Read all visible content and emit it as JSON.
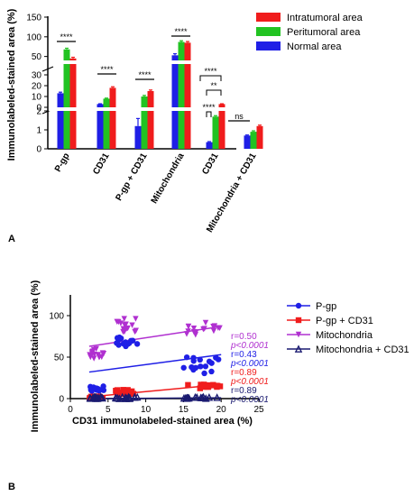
{
  "panel_labels": {
    "a": "A",
    "b": "B"
  },
  "chart_data": [
    {
      "type": "bar",
      "panel": "A",
      "ylabel": "Immunolabeled-stained area (%)",
      "y_scale": "broken",
      "y_segments": [
        {
          "range": [
            0,
            2
          ],
          "ticks": [
            "0",
            "1",
            "2"
          ]
        },
        {
          "range": [
            0,
            40
          ],
          "ticks": [
            "0",
            "10",
            "20",
            "30"
          ]
        },
        {
          "range": [
            40,
            150
          ],
          "ticks": [
            "50",
            "100",
            "150"
          ]
        }
      ],
      "categories": [
        "P-gp",
        "CD31",
        "P-gp + CD31",
        "Mitochondria",
        "CD31",
        "Mitochondria + CD31"
      ],
      "series": [
        {
          "name": "Normal area",
          "color": "#1f1fe6",
          "values": [
            13,
            3,
            1.2,
            53,
            0.35,
            0.7
          ]
        },
        {
          "name": "Peritumoral area",
          "color": "#22c322",
          "values": [
            68,
            8,
            10,
            87,
            1.7,
            0.9
          ]
        },
        {
          "name": "Intratumoral area",
          "color": "#f01c1c",
          "values": [
            45,
            18,
            15,
            85,
            3,
            1.2
          ]
        }
      ],
      "legend_order": [
        "Intratumoral area",
        "Peritumoral area",
        "Normal area"
      ],
      "legend_position": "top-right",
      "significance": [
        "****",
        "****",
        "****",
        "****",
        "****",
        "**",
        "****",
        "ns"
      ]
    },
    {
      "type": "scatter",
      "panel": "B",
      "xlabel": "CD31 immunolabeled-stained area (%)",
      "ylabel": "Immunolabeled-stained area (%)",
      "xlim": [
        0,
        25
      ],
      "ylim": [
        0,
        125
      ],
      "xticks": [
        "0",
        "5",
        "10",
        "15",
        "20",
        "25"
      ],
      "yticks": [
        "0",
        "50",
        "100"
      ],
      "legend_position": "top-right",
      "series": [
        {
          "name": "P-gp",
          "marker": "circle",
          "color": "#1f1fe6",
          "clusters": [
            {
              "x": [
                2.5,
                4.5
              ],
              "y": [
                9,
                15
              ]
            },
            {
              "x": [
                6,
                9
              ],
              "y": [
                62,
                74
              ]
            },
            {
              "x": [
                15,
                20
              ],
              "y": [
                30,
                50
              ]
            }
          ],
          "fit": {
            "x": [
              2.5,
              20
            ],
            "y": [
              32,
              53
            ]
          }
        },
        {
          "name": "P-gp + CD31",
          "marker": "square",
          "color": "#f01c1c",
          "clusters": [
            {
              "x": [
                2.5,
                4.5
              ],
              "y": [
                0,
                3
              ]
            },
            {
              "x": [
                6,
                9
              ],
              "y": [
                5,
                11
              ]
            },
            {
              "x": [
                15,
                20
              ],
              "y": [
                12,
                17
              ]
            }
          ],
          "fit": {
            "x": [
              2.5,
              20
            ],
            "y": [
              2,
              17
            ]
          }
        },
        {
          "name": "Mitochondria",
          "marker": "triangle-down",
          "color": "#b030d0",
          "clusters": [
            {
              "x": [
                2.5,
                4.5
              ],
              "y": [
                48,
                60
              ]
            },
            {
              "x": [
                6,
                9
              ],
              "y": [
                80,
                97
              ]
            },
            {
              "x": [
                15,
                20
              ],
              "y": [
                74,
                92
              ]
            }
          ],
          "fit": {
            "x": [
              2.5,
              20
            ],
            "y": [
              63,
              87
            ]
          }
        },
        {
          "name": "Mitochondria + CD31",
          "marker": "triangle-up",
          "color": "#1a1a70",
          "clusters": [
            {
              "x": [
                2.5,
                4.5
              ],
              "y": [
                0,
                2
              ]
            },
            {
              "x": [
                6,
                9
              ],
              "y": [
                0,
                2
              ]
            },
            {
              "x": [
                15,
                20
              ],
              "y": [
                0,
                2
              ]
            }
          ],
          "fit": {
            "x": [
              2.5,
              20
            ],
            "y": [
              0,
              1
            ]
          }
        }
      ],
      "annotations": [
        {
          "r": "r=0.50",
          "p": "p<0.0001",
          "color": "#b030d0"
        },
        {
          "r": "r=0.43",
          "p": "p<0.0001",
          "color": "#1f1fe6"
        },
        {
          "r": "r=0.89",
          "p": "p<0.0001",
          "color": "#f01c1c"
        },
        {
          "r": "r=0.89",
          "p": "p<0.0001",
          "color": "#1a1a70"
        }
      ]
    }
  ]
}
